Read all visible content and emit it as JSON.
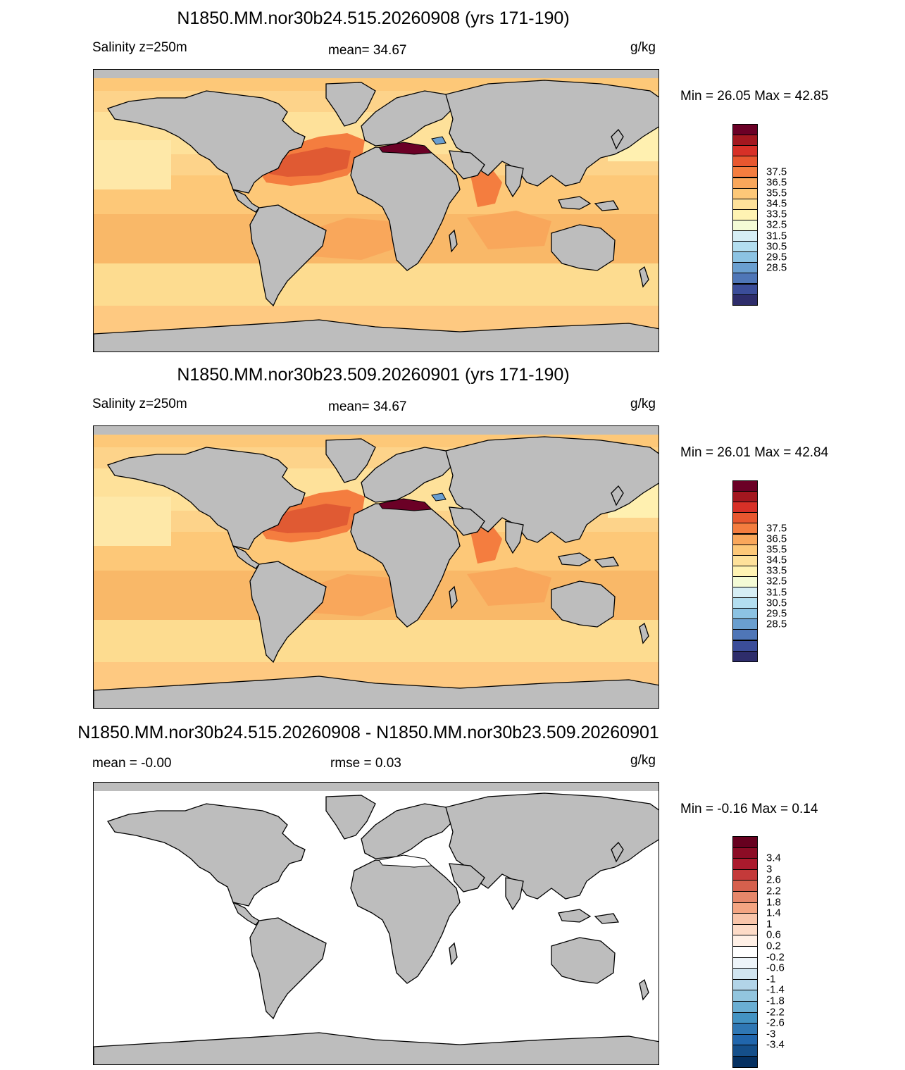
{
  "panels": [
    {
      "title": "N1850.MM.nor30b24.515.20260908 (yrs 171-190)",
      "left_label": "Salinity z=250m",
      "center_label": "mean=  34.67",
      "units": "g/kg",
      "minmax": "Min =  26.05 Max =  42.85",
      "colorbar": {
        "colors": [
          "#6b0026",
          "#a3171f",
          "#d73027",
          "#e8572f",
          "#f47d3f",
          "#f9a75b",
          "#fdc878",
          "#fee19a",
          "#fff3b3",
          "#f4fbd6",
          "#d6eef5",
          "#b3def0",
          "#8cc3e3",
          "#6a9fd0",
          "#4f76b7",
          "#3b4d99",
          "#2e2d6b"
        ],
        "ticks": [
          "37.5",
          "36.5",
          "35.5",
          "34.5",
          "33.5",
          "32.5",
          "31.5",
          "30.5",
          "29.5",
          "28.5"
        ]
      }
    },
    {
      "title": "N1850.MM.nor30b23.509.20260901 (yrs 171-190)",
      "left_label": "Salinity z=250m",
      "center_label": "mean=  34.67",
      "units": "g/kg",
      "minmax": "Min =  26.01 Max =  42.84",
      "colorbar": {
        "colors": [
          "#6b0026",
          "#a3171f",
          "#d73027",
          "#e8572f",
          "#f47d3f",
          "#f9a75b",
          "#fdc878",
          "#fee19a",
          "#fff3b3",
          "#f4fbd6",
          "#d6eef5",
          "#b3def0",
          "#8cc3e3",
          "#6a9fd0",
          "#4f76b7",
          "#3b4d99",
          "#2e2d6b"
        ],
        "ticks": [
          "37.5",
          "36.5",
          "35.5",
          "34.5",
          "33.5",
          "32.5",
          "31.5",
          "30.5",
          "29.5",
          "28.5"
        ]
      }
    },
    {
      "title": "N1850.MM.nor30b24.515.20260908 - N1850.MM.nor30b23.509.20260901",
      "left_label": "mean =  -0.00",
      "center_label": "rmse =   0.03",
      "units": "g/kg",
      "minmax": "Min =  -0.16 Max =   0.14",
      "colorbar": {
        "colors": [
          "#67001f",
          "#8c0c25",
          "#ab1a2d",
          "#c43a3a",
          "#d6604d",
          "#e6876a",
          "#f4a582",
          "#f9c5aa",
          "#fddbc7",
          "#fff0e6",
          "#ffffff",
          "#edf4f9",
          "#d1e5f0",
          "#b2d4e8",
          "#92c5de",
          "#6aaed3",
          "#4393c3",
          "#2f77b4",
          "#2166ac",
          "#154f8a",
          "#053061"
        ],
        "ticks": [
          "3.4",
          "3",
          "2.6",
          "2.2",
          "1.8",
          "1.4",
          "1",
          "0.6",
          "0.2",
          "-0.2",
          "-0.6",
          "-1",
          "-1.4",
          "-1.8",
          "-2.2",
          "-2.6",
          "-3",
          "-3.4"
        ]
      }
    }
  ]
}
